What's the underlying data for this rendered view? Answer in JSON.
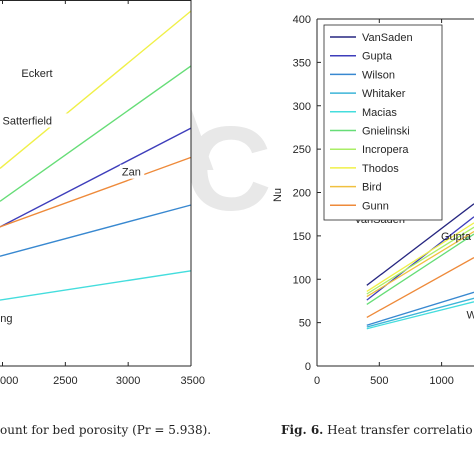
{
  "captions": {
    "left": "ount for bed porosity (Pr = 5.938).",
    "right_label": "Fig. 6.",
    "right_text": " Heat transfer correlatio"
  },
  "chart_data": [
    {
      "type": "line",
      "title": "",
      "xlabel": "",
      "ylabel": "",
      "x_ticks": [
        "000",
        "2500",
        "3000",
        "3500"
      ],
      "xlim": [
        1980,
        3500
      ],
      "ylim": [
        0,
        100
      ],
      "grid": false,
      "legend": "none",
      "series": [
        {
          "name": "Eckert",
          "color": "#f0f048",
          "points": [
            [
              1980,
              54
            ],
            [
              3500,
              97
            ]
          ],
          "label_at": [
            2150,
            79
          ]
        },
        {
          "name": "Satterfield",
          "color": "#66dd77",
          "points": [
            [
              1980,
              45
            ],
            [
              3500,
              82
            ]
          ],
          "label_at": [
            2000,
            66
          ]
        },
        {
          "name": "",
          "color": "#3e3ebb",
          "points": [
            [
              1980,
              38
            ],
            [
              3500,
              65
            ]
          ]
        },
        {
          "name": "Zan",
          "color": "#ee8a3a",
          "points": [
            [
              1980,
              38
            ],
            [
              3500,
              57
            ]
          ],
          "label_at": [
            2950,
            52
          ]
        },
        {
          "name": "",
          "color": "#3888d0",
          "points": [
            [
              1980,
              30
            ],
            [
              3500,
              44
            ]
          ]
        },
        {
          "name": "ng",
          "color": "#44dddd",
          "points": [
            [
              1980,
              18
            ],
            [
              3500,
              26
            ]
          ],
          "label_at": [
            1982,
            12
          ]
        }
      ]
    },
    {
      "type": "line",
      "title": "",
      "xlabel": "",
      "ylabel": "Nu",
      "x_ticks": [
        "0",
        "500",
        "1000"
      ],
      "xlim": [
        0,
        1260
      ],
      "ylim": [
        0,
        400
      ],
      "y_ticks": [
        0,
        50,
        100,
        150,
        200,
        250,
        300,
        350,
        400
      ],
      "grid": false,
      "legend": "top-left",
      "series": [
        {
          "name": "VanSaden",
          "color": "#262680",
          "points": [
            [
              400,
              93
            ],
            [
              1260,
              187
            ]
          ],
          "label_at": [
            300,
            165
          ]
        },
        {
          "name": "Gupta",
          "color": "#3e3ebb",
          "points": [
            [
              400,
              76
            ],
            [
              1260,
              172
            ]
          ],
          "label_at": [
            995,
            145
          ]
        },
        {
          "name": "Wilson",
          "color": "#3888d0",
          "points": [
            [
              400,
              47
            ],
            [
              1260,
              85
            ]
          ],
          "label_at": [
            1200,
            55
          ]
        },
        {
          "name": "Whitaker",
          "color": "#3cb4d8",
          "points": [
            [
              400,
              45
            ],
            [
              1260,
              78
            ]
          ]
        },
        {
          "name": "Macias",
          "color": "#44dddd",
          "points": [
            [
              400,
              43
            ],
            [
              1260,
              74
            ]
          ]
        },
        {
          "name": "Gnielinski",
          "color": "#66dd77",
          "points": [
            [
              400,
              71
            ],
            [
              1260,
              152
            ]
          ]
        },
        {
          "name": "Incropera",
          "color": "#aaee66",
          "points": [
            [
              400,
              83
            ],
            [
              1260,
              160
            ]
          ]
        },
        {
          "name": "Thodos",
          "color": "#f0f048",
          "points": [
            [
              400,
              86
            ],
            [
              1260,
              165
            ]
          ]
        },
        {
          "name": "Bird",
          "color": "#f0c040",
          "points": [
            [
              400,
              80
            ],
            [
              1260,
              155
            ]
          ]
        },
        {
          "name": "Gunn",
          "color": "#ee8a3a",
          "points": [
            [
              400,
              56
            ],
            [
              1260,
              125
            ]
          ]
        }
      ]
    }
  ]
}
